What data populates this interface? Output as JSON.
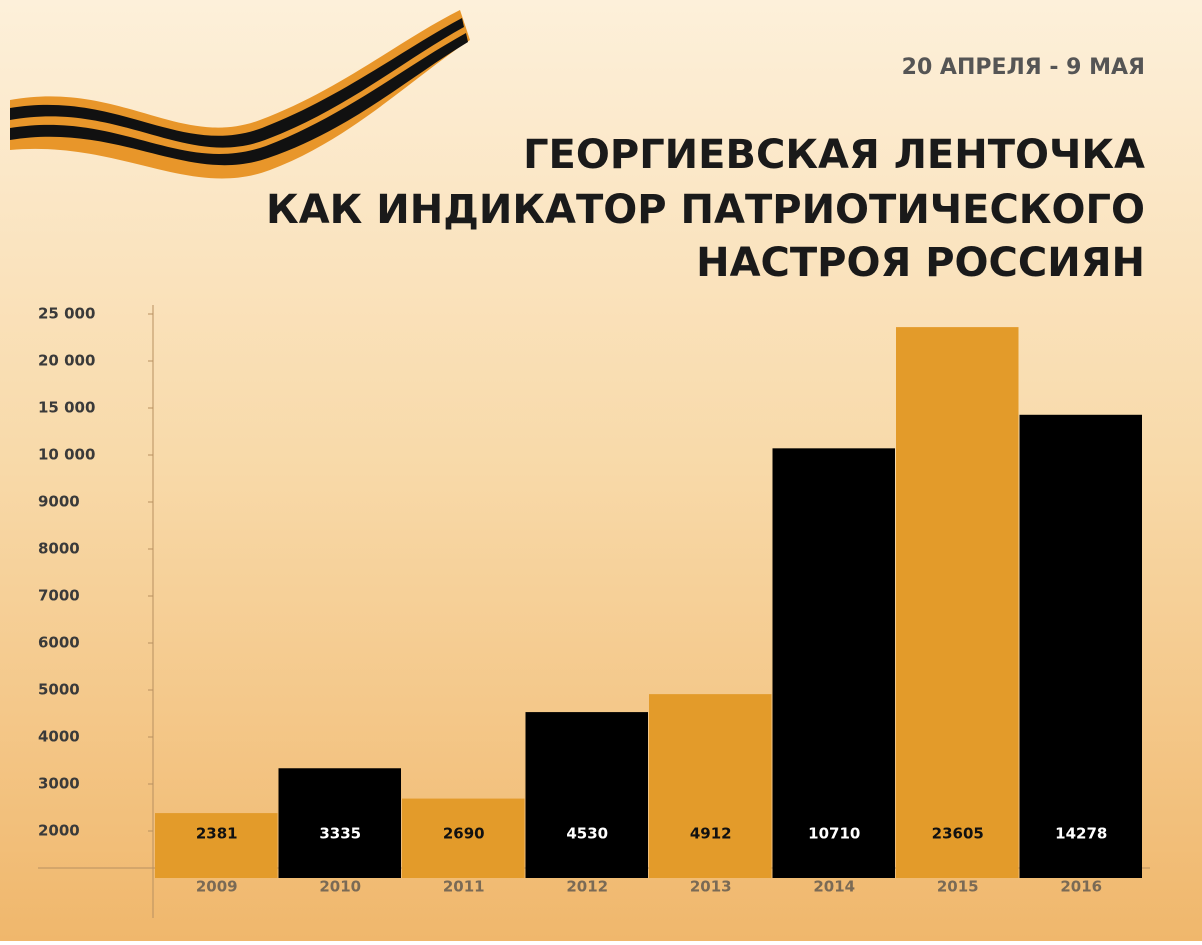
{
  "chart_data": {
    "type": "bar",
    "subtitle": "20 АПРЕЛЯ - 9 МАЯ",
    "title": [
      "ГЕОРГИЕВСКАЯ ЛЕНТОЧКА",
      "КАК ИНДИКАТОР ПАТРИОТИЧЕСКОГО",
      "НАСТРОЯ РОССИЯН"
    ],
    "categories": [
      "2009",
      "2010",
      "2011",
      "2012",
      "2013",
      "2014",
      "2015",
      "2016"
    ],
    "values": [
      2381,
      3335,
      2690,
      4530,
      4912,
      10710,
      23605,
      14278
    ],
    "colors": [
      "#e39b2a",
      "#000000",
      "#e39b2a",
      "#000000",
      "#e39b2a",
      "#000000",
      "#e39b2a",
      "#000000"
    ],
    "ylim": [
      1000,
      25000
    ],
    "yticks": [
      {
        "value": 25000,
        "label": "25 000"
      },
      {
        "value": 20000,
        "label": "20 000"
      },
      {
        "value": 15000,
        "label": "15 000"
      },
      {
        "value": 10000,
        "label": "10 000"
      },
      9000,
      8000,
      7000,
      6000,
      5000,
      4000,
      3000,
      2000
    ]
  }
}
